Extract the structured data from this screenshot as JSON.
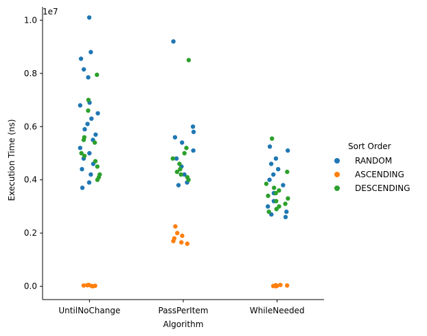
{
  "chart_data": {
    "type": "scatter",
    "subtype": "strip",
    "title": "",
    "xlabel": "Algorithm",
    "ylabel": "Execution Time (ns)",
    "y_multiplier_label": "1e7",
    "y_unit_scale": 10000000,
    "categories": [
      "UntilNoChange",
      "PassPerItem",
      "WhileNeeded"
    ],
    "ylim": [
      -0.05,
      1.05
    ],
    "yticks": [
      0.0,
      0.2,
      0.4,
      0.6,
      0.8,
      1.0
    ],
    "ytick_labels": [
      "0.0",
      "0.2",
      "0.4",
      "0.6",
      "0.8",
      "1.0"
    ],
    "grid": false,
    "legend": {
      "title": "Sort Order",
      "placement": "right",
      "entries": [
        "RANDOM",
        "ASCENDING",
        "DESCENDING"
      ]
    },
    "colors": {
      "RANDOM": "#1f77b4",
      "ASCENDING": "#ff7f0e",
      "DESCENDING": "#2ca02c"
    },
    "series": [
      {
        "name": "RANDOM",
        "points": [
          {
            "category": "UntilNoChange",
            "y": 1.01
          },
          {
            "category": "UntilNoChange",
            "y": 0.88
          },
          {
            "category": "UntilNoChange",
            "y": 0.855
          },
          {
            "category": "UntilNoChange",
            "y": 0.815
          },
          {
            "category": "UntilNoChange",
            "y": 0.785
          },
          {
            "category": "UntilNoChange",
            "y": 0.69
          },
          {
            "category": "UntilNoChange",
            "y": 0.68
          },
          {
            "category": "UntilNoChange",
            "y": 0.65
          },
          {
            "category": "UntilNoChange",
            "y": 0.63
          },
          {
            "category": "UntilNoChange",
            "y": 0.61
          },
          {
            "category": "UntilNoChange",
            "y": 0.59
          },
          {
            "category": "UntilNoChange",
            "y": 0.57
          },
          {
            "category": "UntilNoChange",
            "y": 0.55
          },
          {
            "category": "UntilNoChange",
            "y": 0.52
          },
          {
            "category": "UntilNoChange",
            "y": 0.5
          },
          {
            "category": "UntilNoChange",
            "y": 0.48
          },
          {
            "category": "UntilNoChange",
            "y": 0.46
          },
          {
            "category": "UntilNoChange",
            "y": 0.44
          },
          {
            "category": "UntilNoChange",
            "y": 0.42
          },
          {
            "category": "UntilNoChange",
            "y": 0.39
          },
          {
            "category": "UntilNoChange",
            "y": 0.37
          },
          {
            "category": "PassPerItem",
            "y": 0.92
          },
          {
            "category": "PassPerItem",
            "y": 0.6
          },
          {
            "category": "PassPerItem",
            "y": 0.58
          },
          {
            "category": "PassPerItem",
            "y": 0.56
          },
          {
            "category": "PassPerItem",
            "y": 0.54
          },
          {
            "category": "PassPerItem",
            "y": 0.51
          },
          {
            "category": "PassPerItem",
            "y": 0.48
          },
          {
            "category": "PassPerItem",
            "y": 0.45
          },
          {
            "category": "PassPerItem",
            "y": 0.42
          },
          {
            "category": "PassPerItem",
            "y": 0.39
          },
          {
            "category": "PassPerItem",
            "y": 0.38
          },
          {
            "category": "WhileNeeded",
            "y": 0.525
          },
          {
            "category": "WhileNeeded",
            "y": 0.51
          },
          {
            "category": "WhileNeeded",
            "y": 0.48
          },
          {
            "category": "WhileNeeded",
            "y": 0.46
          },
          {
            "category": "WhileNeeded",
            "y": 0.44
          },
          {
            "category": "WhileNeeded",
            "y": 0.42
          },
          {
            "category": "WhileNeeded",
            "y": 0.4
          },
          {
            "category": "WhileNeeded",
            "y": 0.38
          },
          {
            "category": "WhileNeeded",
            "y": 0.35
          },
          {
            "category": "WhileNeeded",
            "y": 0.32
          },
          {
            "category": "WhileNeeded",
            "y": 0.3
          },
          {
            "category": "WhileNeeded",
            "y": 0.28
          },
          {
            "category": "WhileNeeded",
            "y": 0.27
          },
          {
            "category": "WhileNeeded",
            "y": 0.26
          }
        ]
      },
      {
        "name": "ASCENDING",
        "points": [
          {
            "category": "UntilNoChange",
            "y": 0.005
          },
          {
            "category": "UntilNoChange",
            "y": 0.003
          },
          {
            "category": "UntilNoChange",
            "y": 0.001
          },
          {
            "category": "UntilNoChange",
            "y": 0.004
          },
          {
            "category": "UntilNoChange",
            "y": 0.002
          },
          {
            "category": "UntilNoChange",
            "y": 0.0
          },
          {
            "category": "PassPerItem",
            "y": 0.225
          },
          {
            "category": "PassPerItem",
            "y": 0.2
          },
          {
            "category": "PassPerItem",
            "y": 0.19
          },
          {
            "category": "PassPerItem",
            "y": 0.18
          },
          {
            "category": "PassPerItem",
            "y": 0.17
          },
          {
            "category": "PassPerItem",
            "y": 0.165
          },
          {
            "category": "PassPerItem",
            "y": 0.16
          },
          {
            "category": "WhileNeeded",
            "y": 0.005
          },
          {
            "category": "WhileNeeded",
            "y": 0.003
          },
          {
            "category": "WhileNeeded",
            "y": 0.001
          },
          {
            "category": "WhileNeeded",
            "y": 0.004
          },
          {
            "category": "WhileNeeded",
            "y": 0.002
          },
          {
            "category": "WhileNeeded",
            "y": 0.0
          }
        ]
      },
      {
        "name": "DESCENDING",
        "points": [
          {
            "category": "UntilNoChange",
            "y": 0.795
          },
          {
            "category": "UntilNoChange",
            "y": 0.7
          },
          {
            "category": "UntilNoChange",
            "y": 0.66
          },
          {
            "category": "UntilNoChange",
            "y": 0.56
          },
          {
            "category": "UntilNoChange",
            "y": 0.55
          },
          {
            "category": "UntilNoChange",
            "y": 0.54
          },
          {
            "category": "UntilNoChange",
            "y": 0.5
          },
          {
            "category": "UntilNoChange",
            "y": 0.49
          },
          {
            "category": "UntilNoChange",
            "y": 0.47
          },
          {
            "category": "UntilNoChange",
            "y": 0.45
          },
          {
            "category": "UntilNoChange",
            "y": 0.42
          },
          {
            "category": "UntilNoChange",
            "y": 0.41
          },
          {
            "category": "UntilNoChange",
            "y": 0.4
          },
          {
            "category": "PassPerItem",
            "y": 0.85
          },
          {
            "category": "PassPerItem",
            "y": 0.52
          },
          {
            "category": "PassPerItem",
            "y": 0.5
          },
          {
            "category": "PassPerItem",
            "y": 0.48
          },
          {
            "category": "PassPerItem",
            "y": 0.46
          },
          {
            "category": "PassPerItem",
            "y": 0.44
          },
          {
            "category": "PassPerItem",
            "y": 0.43
          },
          {
            "category": "PassPerItem",
            "y": 0.42
          },
          {
            "category": "PassPerItem",
            "y": 0.41
          },
          {
            "category": "PassPerItem",
            "y": 0.4
          },
          {
            "category": "WhileNeeded",
            "y": 0.555
          },
          {
            "category": "WhileNeeded",
            "y": 0.43
          },
          {
            "category": "WhileNeeded",
            "y": 0.385
          },
          {
            "category": "WhileNeeded",
            "y": 0.37
          },
          {
            "category": "WhileNeeded",
            "y": 0.36
          },
          {
            "category": "WhileNeeded",
            "y": 0.35
          },
          {
            "category": "WhileNeeded",
            "y": 0.34
          },
          {
            "category": "WhileNeeded",
            "y": 0.33
          },
          {
            "category": "WhileNeeded",
            "y": 0.32
          },
          {
            "category": "WhileNeeded",
            "y": 0.31
          },
          {
            "category": "WhileNeeded",
            "y": 0.3
          },
          {
            "category": "WhileNeeded",
            "y": 0.29
          },
          {
            "category": "WhileNeeded",
            "y": 0.28
          }
        ]
      }
    ]
  }
}
